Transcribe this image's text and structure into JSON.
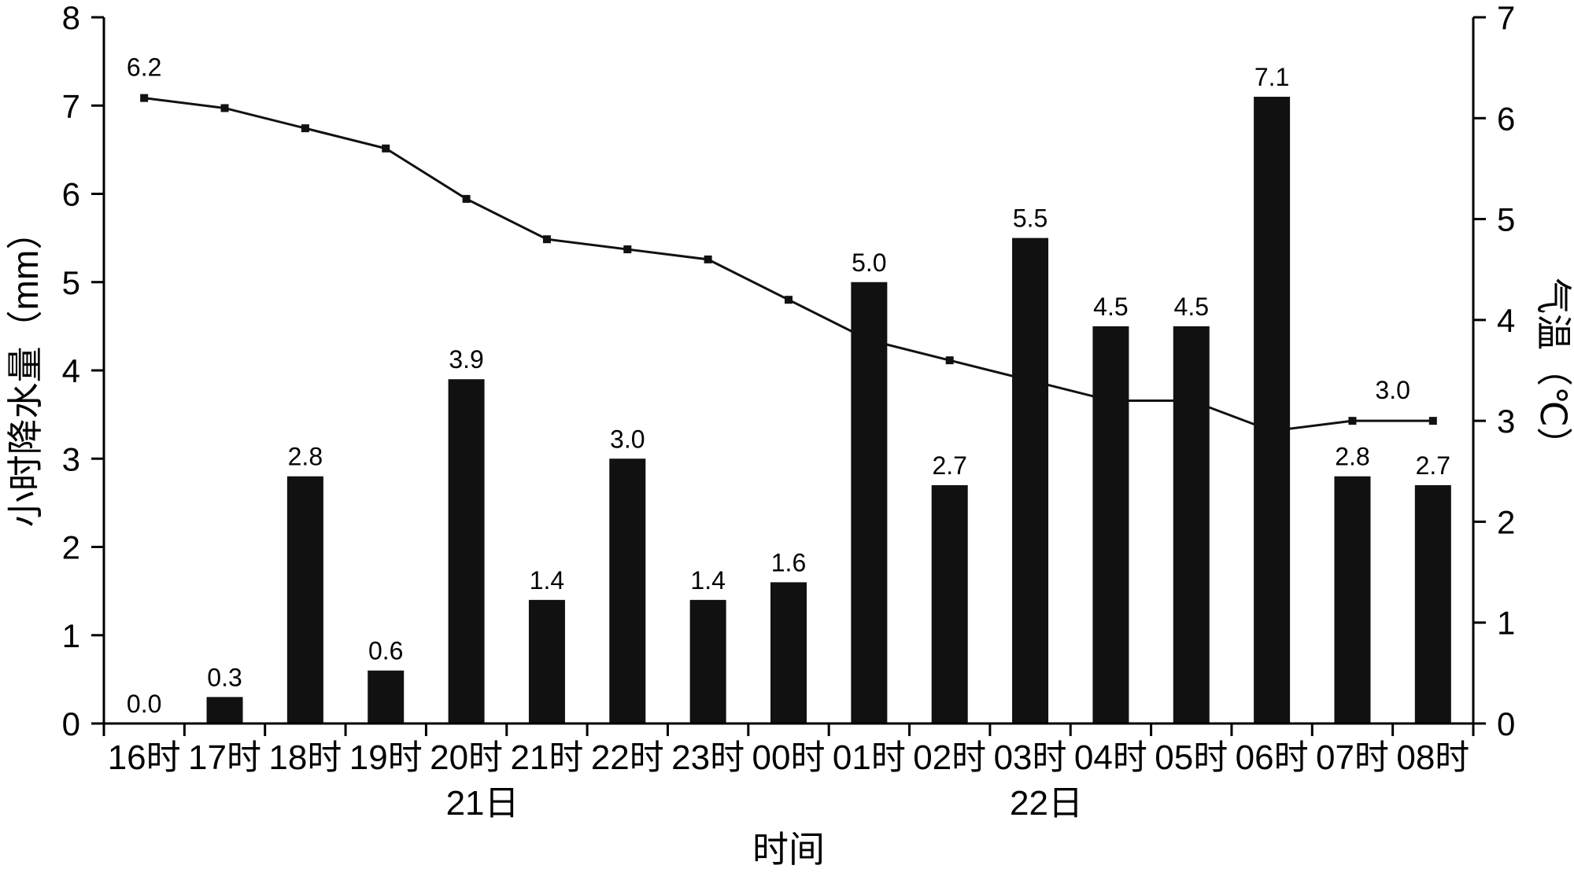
{
  "chart_data": {
    "type": "bar",
    "subtype": "bar+line combo",
    "categories": [
      "16时",
      "17时",
      "18时",
      "19时",
      "20时",
      "21时",
      "22时",
      "23时",
      "00时",
      "01时",
      "02时",
      "03时",
      "04时",
      "05时",
      "06时",
      "07时",
      "08时"
    ],
    "series": [
      {
        "name": "小时降水量",
        "type": "bar",
        "axis": "left",
        "values": [
          0.0,
          0.3,
          2.8,
          0.6,
          3.9,
          1.4,
          3.0,
          1.4,
          1.6,
          5.0,
          2.7,
          5.5,
          4.5,
          4.5,
          7.1,
          2.8,
          2.7
        ]
      },
      {
        "name": "气温",
        "type": "line",
        "axis": "right",
        "values": [
          6.2,
          6.1,
          5.9,
          5.7,
          5.2,
          4.8,
          4.7,
          4.6,
          4.2,
          3.8,
          3.6,
          3.4,
          3.2,
          3.2,
          2.9,
          3.0,
          3.0
        ]
      }
    ],
    "left_axis": {
      "label": "小时降水量（mm）",
      "min": 0,
      "max": 8,
      "ticks": [
        0,
        1,
        2,
        3,
        4,
        5,
        6,
        7,
        8
      ]
    },
    "right_axis": {
      "label": "气温（℃）",
      "min": 0,
      "max": 7,
      "ticks": [
        0,
        1,
        2,
        3,
        4,
        5,
        6,
        7
      ]
    },
    "x_axis": {
      "label": "时间",
      "day_labels": [
        {
          "text": "21日",
          "slot": 4.2
        },
        {
          "text": "22日",
          "slot": 11.2
        }
      ]
    },
    "annotations": {
      "bar_labels_shown": true,
      "line_labels": [
        {
          "text": "6.2",
          "slot": 0
        },
        {
          "text": "3.0",
          "slot": 15.5
        }
      ]
    },
    "layout_hints": {
      "legend": "none",
      "grid": "off",
      "background": "#ffffff"
    },
    "colors": {
      "bar": "#111111",
      "line": "#111111",
      "marker": "#111111",
      "axis": "#000000",
      "text": "#000000"
    }
  }
}
